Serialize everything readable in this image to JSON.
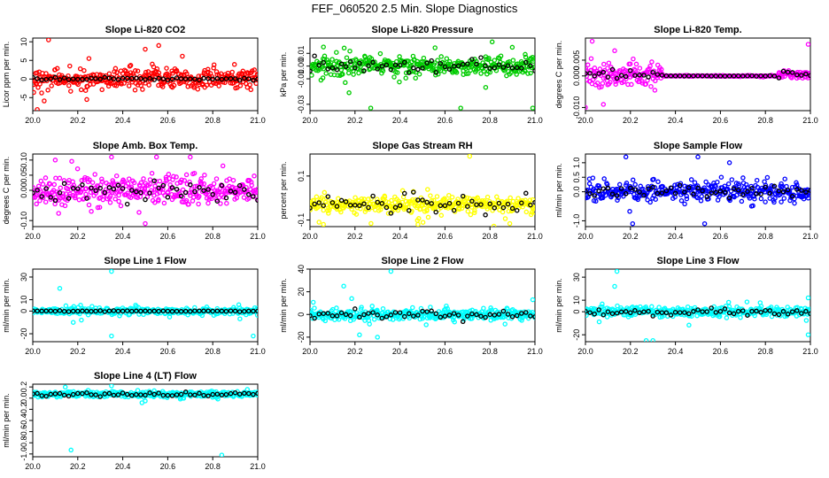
{
  "figure": {
    "title": "FEF_060520  2.5 Min. Slope Diagnostics"
  },
  "chart_data": [
    {
      "type": "scatter",
      "title": "Slope Li-820 CO2",
      "ylabel": "Licor ppm per min.",
      "xlim": [
        20.0,
        21.0
      ],
      "ylim": [
        -8.5,
        11
      ],
      "xticks": [
        "20.0",
        "20.2",
        "20.4",
        "20.6",
        "20.8",
        "21.0"
      ],
      "yticks": [
        {
          "v": -5,
          "label": "-5"
        },
        {
          "v": 0,
          "label": "0"
        },
        {
          "v": 5,
          "label": "5"
        },
        {
          "v": 10,
          "label": "10"
        }
      ],
      "color": "#ff0000",
      "spread": 2.5,
      "black_spread": 0.3,
      "profile": "flat",
      "outliers": [
        [
          20.07,
          10.5
        ],
        [
          20.02,
          -8.2
        ],
        [
          20.56,
          9.0
        ],
        [
          20.24,
          -5.5
        ],
        [
          20.5,
          8.0
        ]
      ]
    },
    {
      "type": "scatter",
      "title": "Slope Li-820 Pressure",
      "ylabel": "kPa per min.",
      "xlim": [
        20.0,
        21.0
      ],
      "ylim": [
        -0.035,
        0.022
      ],
      "xticks": [
        "20.0",
        "20.2",
        "20.4",
        "20.6",
        "20.8",
        "21.0"
      ],
      "yticks": [
        {
          "v": -0.03,
          "label": "-0.03"
        },
        {
          "v": -0.01,
          "label": "-0.01"
        },
        {
          "v": 0.0,
          "label": "0.00"
        },
        {
          "v": 0.01,
          "label": "0.01"
        }
      ],
      "color": "#00cc00",
      "spread": 0.007,
      "black_spread": 0.004,
      "profile": "flat",
      "outliers": [
        [
          20.27,
          -0.033
        ],
        [
          20.67,
          -0.033
        ],
        [
          20.99,
          -0.033
        ],
        [
          20.81,
          0.019
        ],
        [
          20.06,
          0.015
        ]
      ]
    },
    {
      "type": "scatter",
      "title": "Slope Li-820 Temp.",
      "ylabel": "degrees C per min.",
      "xlim": [
        20.0,
        21.0
      ],
      "ylim": [
        -0.011,
        0.012
      ],
      "xticks": [
        "20.0",
        "20.2",
        "20.4",
        "20.6",
        "20.8",
        "21.0"
      ],
      "yticks": [
        {
          "v": -0.01,
          "label": "-0.010"
        },
        {
          "v": 0.0,
          "label": "0.000"
        },
        {
          "v": 0.005,
          "label": "0.005"
        }
      ],
      "color": "#ff00ff",
      "spread": 0.0035,
      "black_spread": 0.0012,
      "profile": "temp",
      "outliers": [
        [
          20.03,
          0.011
        ],
        [
          20.0,
          -0.01
        ],
        [
          20.99,
          0.01
        ],
        [
          20.13,
          0.008
        ],
        [
          20.08,
          -0.009
        ]
      ]
    },
    {
      "type": "scatter",
      "title": "Slope Amb. Box Temp.",
      "ylabel": "degrees C per min.",
      "xlim": [
        20.0,
        21.0
      ],
      "ylim": [
        -0.12,
        0.12
      ],
      "xticks": [
        "20.0",
        "20.2",
        "20.4",
        "20.6",
        "20.8",
        "21.0"
      ],
      "yticks": [
        {
          "v": -0.1,
          "label": "-0.10"
        },
        {
          "v": 0.0,
          "label": "0.00"
        },
        {
          "v": 0.05,
          "label": "0.05"
        },
        {
          "v": 0.1,
          "label": "0.10"
        }
      ],
      "color": "#ff00ff",
      "spread": 0.045,
      "black_spread": 0.035,
      "profile": "flat",
      "outliers": [
        [
          20.35,
          0.11
        ],
        [
          20.55,
          0.11
        ],
        [
          20.7,
          0.11
        ],
        [
          20.5,
          -0.11
        ],
        [
          20.1,
          0.1
        ]
      ]
    },
    {
      "type": "scatter",
      "title": "Slope Gas Stream RH",
      "ylabel": "percent per min.",
      "xlim": [
        20.0,
        21.0
      ],
      "ylim": [
        -0.13,
        0.2
      ],
      "xticks": [
        "20.0",
        "20.2",
        "20.4",
        "20.6",
        "20.8",
        "21.0"
      ],
      "yticks": [
        {
          "v": -0.1,
          "label": "-0.1"
        },
        {
          "v": 0.1,
          "label": "0.1"
        }
      ],
      "color": "#ffff00",
      "spread": 0.035,
      "black_spread": 0.035,
      "profile": "flat",
      "offset": -0.03,
      "outliers": [
        [
          20.71,
          0.19
        ],
        [
          20.48,
          -0.12
        ],
        [
          20.04,
          -0.11
        ]
      ]
    },
    {
      "type": "scatter",
      "title": "Slope Sample Flow",
      "ylabel": "ml/min per min.",
      "xlim": [
        20.0,
        21.0
      ],
      "ylim": [
        -1.2,
        1.3
      ],
      "xticks": [
        "20.0",
        "20.2",
        "20.4",
        "20.6",
        "20.8",
        "21.0"
      ],
      "yticks": [
        {
          "v": -1.0,
          "label": "-1.0"
        },
        {
          "v": 0.0,
          "label": "0.0"
        },
        {
          "v": 0.5,
          "label": "0.5"
        },
        {
          "v": 1.0,
          "label": "1.0"
        }
      ],
      "color": "#0000ff",
      "spread": 0.3,
      "black_spread": 0.2,
      "profile": "flat",
      "outliers": [
        [
          20.18,
          1.2
        ],
        [
          20.5,
          1.2
        ],
        [
          20.21,
          -1.1
        ],
        [
          20.53,
          -1.1
        ],
        [
          20.64,
          1.0
        ]
      ]
    },
    {
      "type": "scatter",
      "title": "Slope Line 1 Flow",
      "ylabel": "ml/min per min.",
      "xlim": [
        20.0,
        21.0
      ],
      "ylim": [
        -27,
        37
      ],
      "xticks": [
        "20.0",
        "20.2",
        "20.4",
        "20.6",
        "20.8",
        "21.0"
      ],
      "yticks": [
        {
          "v": -20,
          "label": "-20"
        },
        {
          "v": 0,
          "label": "0"
        },
        {
          "v": 10,
          "label": "10"
        },
        {
          "v": 30,
          "label": "30"
        }
      ],
      "color": "#00ffff",
      "spread": 2.5,
      "black_spread": 0.3,
      "profile": "flat",
      "outliers": [
        [
          20.35,
          35
        ],
        [
          20.12,
          20
        ],
        [
          20.35,
          -22
        ],
        [
          20.98,
          -22
        ],
        [
          20.18,
          -10
        ]
      ]
    },
    {
      "type": "scatter",
      "title": "Slope Line 2 Flow",
      "ylabel": "ml/min per min.",
      "xlim": [
        20.0,
        21.0
      ],
      "ylim": [
        -24,
        40
      ],
      "xticks": [
        "20.0",
        "20.2",
        "20.4",
        "20.6",
        "20.8",
        "21.0"
      ],
      "yticks": [
        {
          "v": -20,
          "label": "-20"
        },
        {
          "v": 0,
          "label": "0"
        },
        {
          "v": 20,
          "label": "20"
        },
        {
          "v": 40,
          "label": "40"
        }
      ],
      "color": "#00ffff",
      "spread": 4,
      "black_spread": 3,
      "profile": "flat",
      "outliers": [
        [
          20.36,
          38
        ],
        [
          20.15,
          25
        ],
        [
          20.3,
          -20
        ],
        [
          20.22,
          -18
        ],
        [
          20.99,
          13
        ]
      ]
    },
    {
      "type": "scatter",
      "title": "Slope Line 3 Flow",
      "ylabel": "ml/min per min.",
      "xlim": [
        20.0,
        21.0
      ],
      "ylim": [
        -26,
        37
      ],
      "xticks": [
        "20.0",
        "20.2",
        "20.4",
        "20.6",
        "20.8",
        "21.0"
      ],
      "yticks": [
        {
          "v": -20,
          "label": "-20"
        },
        {
          "v": 0,
          "label": "0"
        },
        {
          "v": 10,
          "label": "10"
        },
        {
          "v": 30,
          "label": "30"
        }
      ],
      "color": "#00ffff",
      "spread": 4,
      "black_spread": 3,
      "profile": "flat",
      "outliers": [
        [
          20.14,
          35
        ],
        [
          20.3,
          -25
        ],
        [
          20.27,
          -25
        ],
        [
          20.99,
          -20
        ],
        [
          20.99,
          12
        ],
        [
          20.13,
          22
        ]
      ]
    },
    {
      "type": "scatter",
      "title": "Slope Line 4 (LT) Flow",
      "ylabel": "ml/min per min.",
      "xlim": [
        20.0,
        21.0
      ],
      "ylim": [
        -1.05,
        0.25
      ],
      "xticks": [
        "20.0",
        "20.2",
        "20.4",
        "20.6",
        "20.8",
        "21.0"
      ],
      "yticks": [
        {
          "v": -1.0,
          "label": "-1.0"
        },
        {
          "v": -0.8,
          "label": "-0.8"
        },
        {
          "v": -0.6,
          "label": "-0.6"
        },
        {
          "v": -0.4,
          "label": "-0.4"
        },
        {
          "v": -0.2,
          "label": "-0.2"
        },
        {
          "v": 0.0,
          "label": "0.0"
        },
        {
          "v": 0.2,
          "label": "0.2"
        }
      ],
      "color": "#00ffff",
      "spread": 0.05,
      "black_spread": 0.03,
      "profile": "flat",
      "offset": 0.07,
      "outliers": [
        [
          20.17,
          -0.93
        ],
        [
          20.84,
          -1.02
        ],
        [
          20.35,
          0.22
        ],
        [
          20.5,
          -0.05
        ]
      ]
    }
  ]
}
